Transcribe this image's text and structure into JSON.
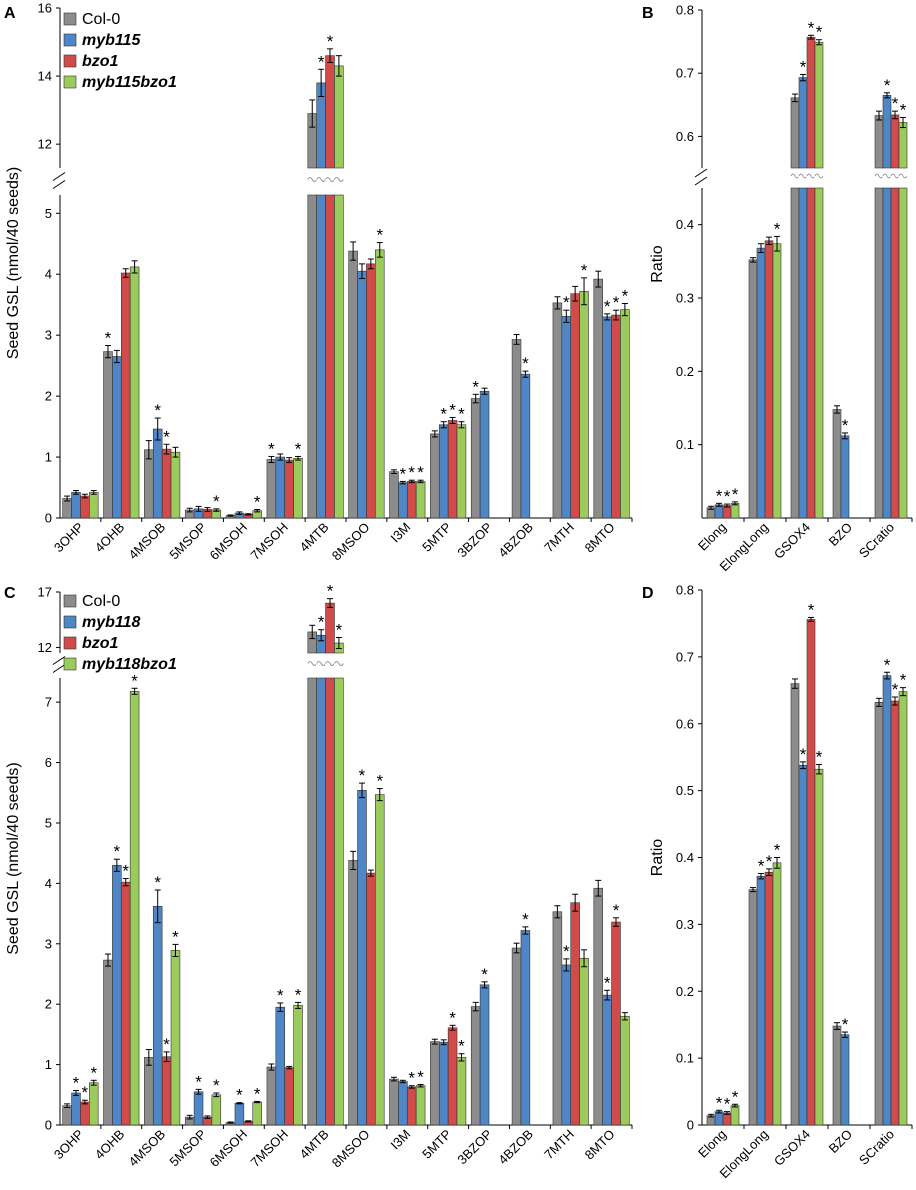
{
  "colors": {
    "Col-0": "#8c8c8c",
    "mutant1": "#4f86c6",
    "bzo1": "#d24b4b",
    "double": "#9ccb5d"
  },
  "chart_data": [
    {
      "panel": "A",
      "type": "bar",
      "ylabel": "Seed GSL (nmol/40 seeds)",
      "axis_break": {
        "lower": [
          0,
          5.3
        ],
        "upper": [
          11.3,
          16
        ]
      },
      "yticks_lower": [
        "0",
        "1",
        "2",
        "3",
        "4",
        "5"
      ],
      "yticks_upper": [
        "12",
        "14",
        "16"
      ],
      "categories": [
        "3OHP",
        "4OHB",
        "4MSOB",
        "5MSOP",
        "6MSOH",
        "7MSOH",
        "4MTB",
        "8MSOO",
        "I3M",
        "5MTP",
        "3BZOP",
        "4BZOB",
        "7MTH",
        "8MTO"
      ],
      "series": [
        {
          "name": "Col-0",
          "values": [
            0.32,
            2.73,
            1.12,
            0.13,
            0.04,
            0.96,
            12.9,
            4.38,
            0.76,
            1.38,
            1.96,
            2.93,
            3.53,
            3.92
          ],
          "errors": [
            0.04,
            0.1,
            0.15,
            0.03,
            0.01,
            0.05,
            0.4,
            0.15,
            0.03,
            0.05,
            0.07,
            0.08,
            0.1,
            0.13
          ]
        },
        {
          "name": "myb115",
          "values": [
            0.42,
            2.65,
            1.46,
            0.15,
            0.08,
            1.0,
            13.8,
            4.05,
            0.58,
            1.53,
            2.08,
            2.36,
            3.31,
            3.3
          ],
          "errors": [
            0.03,
            0.1,
            0.18,
            0.04,
            0.02,
            0.05,
            0.4,
            0.12,
            0.02,
            0.05,
            0.05,
            0.05,
            0.1,
            0.05
          ]
        },
        {
          "name": "bzo1",
          "values": [
            0.36,
            4.02,
            1.13,
            0.14,
            0.06,
            0.95,
            14.6,
            4.17,
            0.6,
            1.6,
            null,
            null,
            3.68,
            3.33
          ],
          "errors": [
            0.03,
            0.07,
            0.08,
            0.03,
            0.01,
            0.04,
            0.2,
            0.08,
            0.02,
            0.05,
            null,
            null,
            0.12,
            0.08
          ]
        },
        {
          "name": "myb115bzo1",
          "values": [
            0.42,
            4.12,
            1.08,
            0.13,
            0.12,
            0.98,
            14.3,
            4.4,
            0.6,
            1.53,
            null,
            null,
            3.72,
            3.42
          ],
          "errors": [
            0.03,
            0.1,
            0.08,
            0.02,
            0.02,
            0.03,
            0.3,
            0.12,
            0.02,
            0.05,
            null,
            null,
            0.22,
            0.1
          ]
        }
      ],
      "significance": [
        [
          false,
          true,
          false,
          false,
          false,
          true,
          false,
          false,
          false,
          false,
          true,
          false,
          false,
          false
        ],
        [
          false,
          false,
          true,
          false,
          false,
          false,
          true,
          false,
          true,
          true,
          false,
          true,
          true,
          true
        ],
        [
          false,
          false,
          true,
          false,
          false,
          false,
          true,
          false,
          true,
          true,
          false,
          false,
          false,
          true
        ],
        [
          false,
          false,
          false,
          true,
          true,
          true,
          false,
          true,
          true,
          true,
          false,
          false,
          true,
          true
        ]
      ],
      "star": "*",
      "legend": [
        "Col-0",
        "myb115",
        "bzo1",
        "myb115bzo1"
      ]
    },
    {
      "panel": "B",
      "type": "bar",
      "ylabel": "Ratio",
      "axis_break": {
        "lower": [
          0,
          0.45
        ],
        "upper": [
          0.55,
          0.8
        ]
      },
      "yticks_lower": [
        "0.1",
        "0.2",
        "0.3",
        "0.4"
      ],
      "yticks_upper": [
        "0.6",
        "0.7",
        "0.8"
      ],
      "categories": [
        "Elong",
        "ElongLong",
        "GSOX4",
        "BZO",
        "SCratio"
      ],
      "series": [
        {
          "name": "Col-0",
          "values": [
            0.014,
            0.352,
            0.661,
            0.148,
            0.633
          ],
          "errors": [
            0.002,
            0.003,
            0.006,
            0.005,
            0.007
          ]
        },
        {
          "name": "myb115",
          "values": [
            0.018,
            0.368,
            0.693,
            0.112,
            0.665
          ],
          "errors": [
            0.002,
            0.006,
            0.005,
            0.004,
            0.004
          ]
        },
        {
          "name": "bzo1",
          "values": [
            0.017,
            0.378,
            0.757,
            null,
            0.634
          ],
          "errors": [
            0.002,
            0.005,
            0.003,
            null,
            0.006
          ]
        },
        {
          "name": "myb115bzo1",
          "values": [
            0.02,
            0.374,
            0.749,
            null,
            0.622
          ],
          "errors": [
            0.002,
            0.01,
            0.004,
            null,
            0.008
          ]
        }
      ],
      "significance": [
        [
          false,
          false,
          false,
          false,
          false
        ],
        [
          true,
          false,
          true,
          true,
          true
        ],
        [
          true,
          false,
          true,
          false,
          true
        ],
        [
          true,
          true,
          true,
          false,
          true
        ]
      ],
      "star": "*"
    },
    {
      "panel": "C",
      "type": "bar",
      "ylabel": "Seed GSL (nmol/40 seeds)",
      "axis_break": {
        "lower": [
          0,
          7.4
        ],
        "upper": [
          11.5,
          17
        ]
      },
      "yticks_lower": [
        "0",
        "1",
        "2",
        "3",
        "4",
        "5",
        "6",
        "7"
      ],
      "yticks_upper": [
        "12",
        "17"
      ],
      "categories": [
        "3OHP",
        "4OHB",
        "4MSOB",
        "5MSOP",
        "6MSOH",
        "7MSOH",
        "4MTB",
        "8MSOO",
        "I3M",
        "5MTP",
        "3BZOP",
        "4BZOB",
        "7MTH",
        "8MTO"
      ],
      "series": [
        {
          "name": "Col-0",
          "values": [
            0.32,
            2.73,
            1.12,
            0.13,
            0.04,
            0.96,
            13.4,
            4.38,
            0.76,
            1.38,
            1.96,
            2.93,
            3.53,
            3.92
          ],
          "errors": [
            0.03,
            0.1,
            0.13,
            0.03,
            0.01,
            0.05,
            0.6,
            0.15,
            0.03,
            0.04,
            0.07,
            0.08,
            0.1,
            0.13
          ]
        },
        {
          "name": "myb118",
          "values": [
            0.53,
            4.3,
            3.62,
            0.55,
            0.36,
            1.95,
            13.1,
            5.54,
            0.72,
            1.37,
            2.32,
            3.22,
            2.65,
            2.15
          ],
          "errors": [
            0.04,
            0.1,
            0.27,
            0.04,
            0.01,
            0.07,
            0.5,
            0.12,
            0.02,
            0.04,
            0.05,
            0.06,
            0.1,
            0.08
          ]
        },
        {
          "name": "bzo1",
          "values": [
            0.38,
            4.02,
            1.13,
            0.13,
            0.06,
            0.95,
            16.0,
            4.17,
            0.63,
            1.61,
            null,
            null,
            3.68,
            3.36
          ],
          "errors": [
            0.03,
            0.06,
            0.08,
            0.02,
            0.01,
            0.02,
            0.4,
            0.05,
            0.02,
            0.04,
            null,
            null,
            0.14,
            0.07
          ]
        },
        {
          "name": "myb118bzo1",
          "values": [
            0.7,
            7.18,
            2.89,
            0.5,
            0.38,
            1.98,
            12.4,
            5.47,
            0.65,
            1.12,
            null,
            null,
            2.76,
            1.8
          ],
          "errors": [
            0.04,
            0.05,
            0.1,
            0.03,
            0.01,
            0.05,
            0.5,
            0.1,
            0.02,
            0.06,
            null,
            null,
            0.14,
            0.06
          ]
        }
      ],
      "significance": [
        [
          false,
          false,
          false,
          false,
          false,
          false,
          false,
          false,
          false,
          false,
          false,
          false,
          false,
          false
        ],
        [
          true,
          true,
          true,
          true,
          true,
          true,
          true,
          true,
          false,
          false,
          true,
          true,
          true,
          true
        ],
        [
          true,
          true,
          true,
          false,
          false,
          false,
          true,
          false,
          true,
          true,
          false,
          false,
          false,
          true
        ],
        [
          true,
          true,
          true,
          true,
          true,
          true,
          true,
          true,
          true,
          true,
          false,
          false,
          false,
          false
        ]
      ],
      "star": "*",
      "legend": [
        "Col-0",
        "myb118",
        "bzo1",
        "myb118bzo1"
      ]
    },
    {
      "panel": "D",
      "type": "bar",
      "ylabel": "Ratio",
      "ylim": [
        0,
        0.8
      ],
      "yticks": [
        "0",
        "0.1",
        "0.2",
        "0.3",
        "0.4",
        "0.5",
        "0.6",
        "0.7",
        "0.8"
      ],
      "categories": [
        "Elong",
        "ElongLong",
        "GSOX4",
        "BZO",
        "SCratio"
      ],
      "series": [
        {
          "name": "Col-0",
          "values": [
            0.014,
            0.352,
            0.66,
            0.148,
            0.632
          ],
          "errors": [
            0.002,
            0.003,
            0.007,
            0.005,
            0.006
          ]
        },
        {
          "name": "myb118",
          "values": [
            0.02,
            0.372,
            0.538,
            0.135,
            0.672
          ],
          "errors": [
            0.002,
            0.004,
            0.005,
            0.004,
            0.005
          ]
        },
        {
          "name": "bzo1",
          "values": [
            0.018,
            0.378,
            0.756,
            null,
            0.634
          ],
          "errors": [
            0.002,
            0.005,
            0.003,
            null,
            0.006
          ]
        },
        {
          "name": "myb118bzo1",
          "values": [
            0.029,
            0.392,
            0.532,
            null,
            0.648
          ],
          "errors": [
            0.002,
            0.008,
            0.007,
            null,
            0.006
          ]
        }
      ],
      "significance": [
        [
          false,
          false,
          false,
          false,
          false
        ],
        [
          true,
          true,
          true,
          true,
          true
        ],
        [
          true,
          true,
          true,
          false,
          true
        ],
        [
          true,
          true,
          true,
          false,
          true
        ]
      ],
      "star": "*"
    }
  ]
}
